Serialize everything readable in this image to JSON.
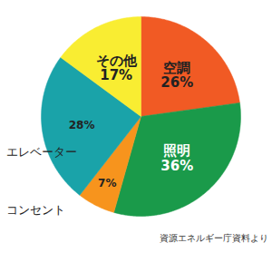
{
  "chart_data": {
    "type": "pie",
    "categories": [
      "空調",
      "照明",
      "コンセント",
      "エレベーター",
      "その他"
    ],
    "values": [
      26,
      36,
      7,
      28,
      17
    ],
    "value_labels": [
      "26%",
      "36%",
      "7%",
      "28%",
      "17%"
    ],
    "colors": [
      "#f15a24",
      "#1a9a4a",
      "#f7941d",
      "#1aa3a9",
      "#f9ed32"
    ],
    "data_labels": true,
    "caption": "資源エネルギー庁資料より"
  }
}
